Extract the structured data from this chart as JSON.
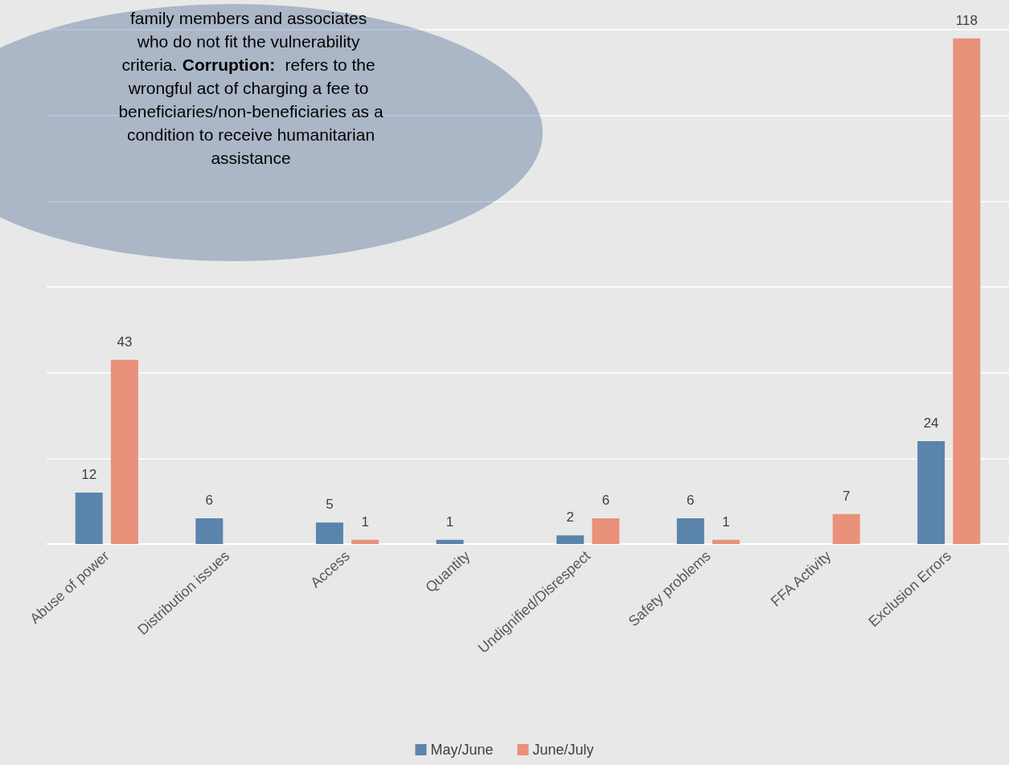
{
  "chart_data": {
    "type": "bar",
    "categories": [
      "Abuse of power",
      "Distribution issues",
      "Access",
      "Quantity",
      "Undignified/Disrespect",
      "Safety problems",
      "FFA Activity",
      "Exclusion Errors"
    ],
    "series": [
      {
        "name": "May/June",
        "color": "#5b84ac",
        "values": [
          12,
          6,
          5,
          1,
          2,
          6,
          null,
          24
        ]
      },
      {
        "name": "June/July",
        "color": "#e9917a",
        "values": [
          43,
          null,
          1,
          null,
          6,
          1,
          7,
          118
        ]
      }
    ],
    "ylim": [
      0,
      120
    ],
    "yticks": [
      {
        "value": 0,
        "label": null
      },
      {
        "value": 20,
        "label": null
      },
      {
        "value": 40,
        "label": null
      },
      {
        "value": 60,
        "label": null
      },
      {
        "value": 80,
        "label": null
      },
      {
        "value": 100,
        "label": null
      },
      {
        "value": 120,
        "label": null
      }
    ],
    "tick_labels": "x",
    "grid": "y",
    "data_labels": true,
    "legend": "bottom",
    "annotations": [
      "family members and associates who do not fit the vulnerability criteria.",
      "Corruption: refers to the wrongful act of charging a fee to beneficiaries/non-beneficiaries as a condition to receive humanitarian assistance"
    ]
  }
}
